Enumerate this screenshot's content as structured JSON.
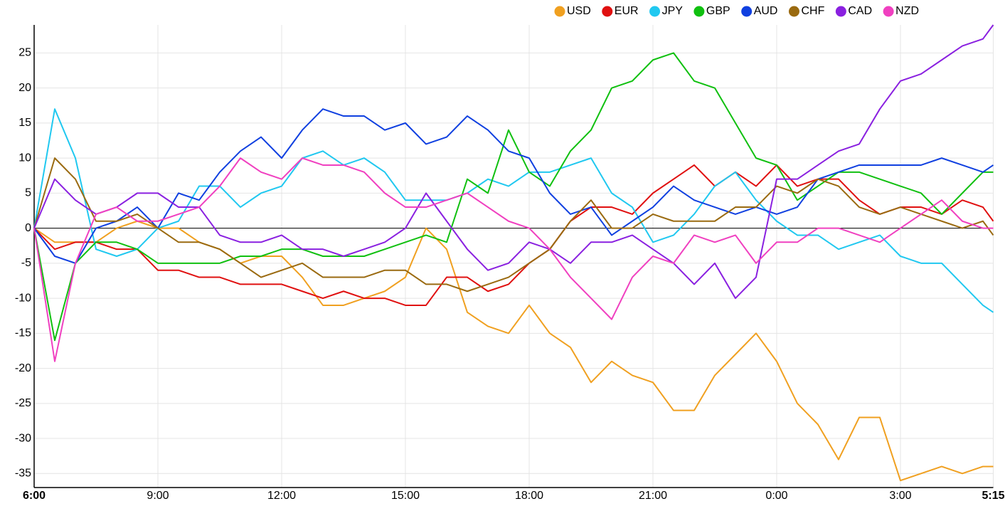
{
  "chart_data": {
    "type": "line",
    "x": [
      0,
      0.5,
      1,
      1.5,
      2,
      2.5,
      3,
      3.5,
      4,
      4.5,
      5,
      5.5,
      6,
      6.5,
      7,
      7.5,
      8,
      8.5,
      9,
      9.5,
      10,
      10.5,
      11,
      11.5,
      12,
      12.5,
      13,
      13.5,
      14,
      14.5,
      15,
      15.5,
      16,
      16.5,
      17,
      17.5,
      18,
      18.5,
      19,
      19.5,
      20,
      20.5,
      21,
      21.5,
      22,
      22.5,
      23,
      23.25
    ],
    "xlim": [
      0,
      23.25
    ],
    "xticks": [
      {
        "value": 0,
        "label": "6:00"
      },
      {
        "value": 3,
        "label": "9:00"
      },
      {
        "value": 6,
        "label": "12:00"
      },
      {
        "value": 9,
        "label": "15:00"
      },
      {
        "value": 12,
        "label": "18:00"
      },
      {
        "value": 15,
        "label": "21:00"
      },
      {
        "value": 18,
        "label": "0:00"
      },
      {
        "value": 21,
        "label": "3:00"
      },
      {
        "value": 23.25,
        "label": "5:15"
      }
    ],
    "ylim": [
      -37,
      29
    ],
    "yticks": [
      -35,
      -30,
      -25,
      -20,
      -15,
      -10,
      -5,
      0,
      5,
      10,
      15,
      20,
      25
    ],
    "grid": true,
    "legend": "top-right",
    "series": [
      {
        "name": "USD",
        "color": "#f0a020",
        "values": [
          0,
          -2,
          -2,
          -2,
          0,
          1,
          0,
          0,
          -2,
          -3,
          -5,
          -4,
          -4,
          -7,
          -11,
          -11,
          -10,
          -9,
          -7,
          0,
          -3,
          -12,
          -14,
          -15,
          -11,
          -15,
          -17,
          -22,
          -19,
          -21,
          -22,
          -26,
          -26,
          -21,
          -18,
          -15,
          -19,
          -25,
          -28,
          -33,
          -27,
          -27,
          -36,
          -35,
          -34,
          -35,
          -34,
          -34
        ]
      },
      {
        "name": "EUR",
        "color": "#e01010",
        "values": [
          0,
          -3,
          -2,
          -2,
          -3,
          -3,
          -6,
          -6,
          -7,
          -7,
          -8,
          -8,
          -8,
          -9,
          -10,
          -9,
          -10,
          -10,
          -11,
          -11,
          -7,
          -7,
          -9,
          -8,
          -5,
          -3,
          1,
          3,
          3,
          2,
          5,
          7,
          9,
          6,
          8,
          6,
          9,
          6,
          7,
          7,
          4,
          2,
          3,
          3,
          2,
          4,
          3,
          1
        ]
      },
      {
        "name": "JPY",
        "color": "#20c8f0",
        "values": [
          0,
          17,
          10,
          -3,
          -4,
          -3,
          0,
          1,
          6,
          6,
          3,
          5,
          6,
          10,
          11,
          9,
          10,
          8,
          4,
          4,
          4,
          5,
          7,
          6,
          8,
          8,
          9,
          10,
          5,
          3,
          -2,
          -1,
          2,
          6,
          8,
          4,
          1,
          -1,
          -1,
          -3,
          -2,
          -1,
          -4,
          -5,
          -5,
          -8,
          -11,
          -12
        ]
      },
      {
        "name": "GBP",
        "color": "#10c010",
        "values": [
          0,
          -16,
          -5,
          -2,
          -2,
          -3,
          -5,
          -5,
          -5,
          -5,
          -4,
          -4,
          -3,
          -3,
          -4,
          -4,
          -4,
          -3,
          -2,
          -1,
          -2,
          7,
          5,
          14,
          8,
          6,
          11,
          14,
          20,
          21,
          24,
          25,
          21,
          20,
          15,
          10,
          9,
          4,
          6,
          8,
          8,
          7,
          6,
          5,
          2,
          5,
          8,
          8
        ]
      },
      {
        "name": "AUD",
        "color": "#1040e0",
        "values": [
          0,
          -4,
          -5,
          0,
          1,
          3,
          0,
          5,
          4,
          8,
          11,
          13,
          10,
          14,
          17,
          16,
          16,
          14,
          15,
          12,
          13,
          16,
          14,
          11,
          10,
          5,
          2,
          3,
          -1,
          1,
          3,
          6,
          4,
          3,
          2,
          3,
          2,
          3,
          7,
          8,
          9,
          9,
          9,
          9,
          10,
          9,
          8,
          9
        ]
      },
      {
        "name": "CHF",
        "color": "#9a6a10",
        "values": [
          0,
          10,
          7,
          1,
          1,
          2,
          0,
          -2,
          -2,
          -3,
          -5,
          -7,
          -6,
          -5,
          -7,
          -7,
          -7,
          -6,
          -6,
          -8,
          -8,
          -9,
          -8,
          -7,
          -5,
          -3,
          1,
          4,
          0,
          0,
          2,
          1,
          1,
          1,
          3,
          3,
          6,
          5,
          7,
          6,
          3,
          2,
          3,
          2,
          1,
          0,
          1,
          -1
        ]
      },
      {
        "name": "CAD",
        "color": "#8a20e0",
        "values": [
          0,
          7,
          4,
          2,
          3,
          5,
          5,
          3,
          3,
          -1,
          -2,
          -2,
          -1,
          -3,
          -3,
          -4,
          -3,
          -2,
          0,
          5,
          1,
          -3,
          -6,
          -5,
          -2,
          -3,
          -5,
          -2,
          -2,
          -1,
          -3,
          -5,
          -8,
          -5,
          -10,
          -7,
          7,
          7,
          9,
          11,
          12,
          17,
          21,
          22,
          24,
          26,
          27,
          29
        ]
      },
      {
        "name": "NZD",
        "color": "#f040c0",
        "values": [
          0,
          -19,
          -5,
          2,
          3,
          1,
          1,
          2,
          3,
          6,
          10,
          8,
          7,
          10,
          9,
          9,
          8,
          5,
          3,
          3,
          4,
          5,
          3,
          1,
          0,
          -3,
          -7,
          -10,
          -13,
          -7,
          -4,
          -5,
          -1,
          -2,
          -1,
          -5,
          -2,
          -2,
          0,
          0,
          -1,
          -2,
          0,
          2,
          4,
          1,
          0,
          0
        ]
      }
    ]
  }
}
